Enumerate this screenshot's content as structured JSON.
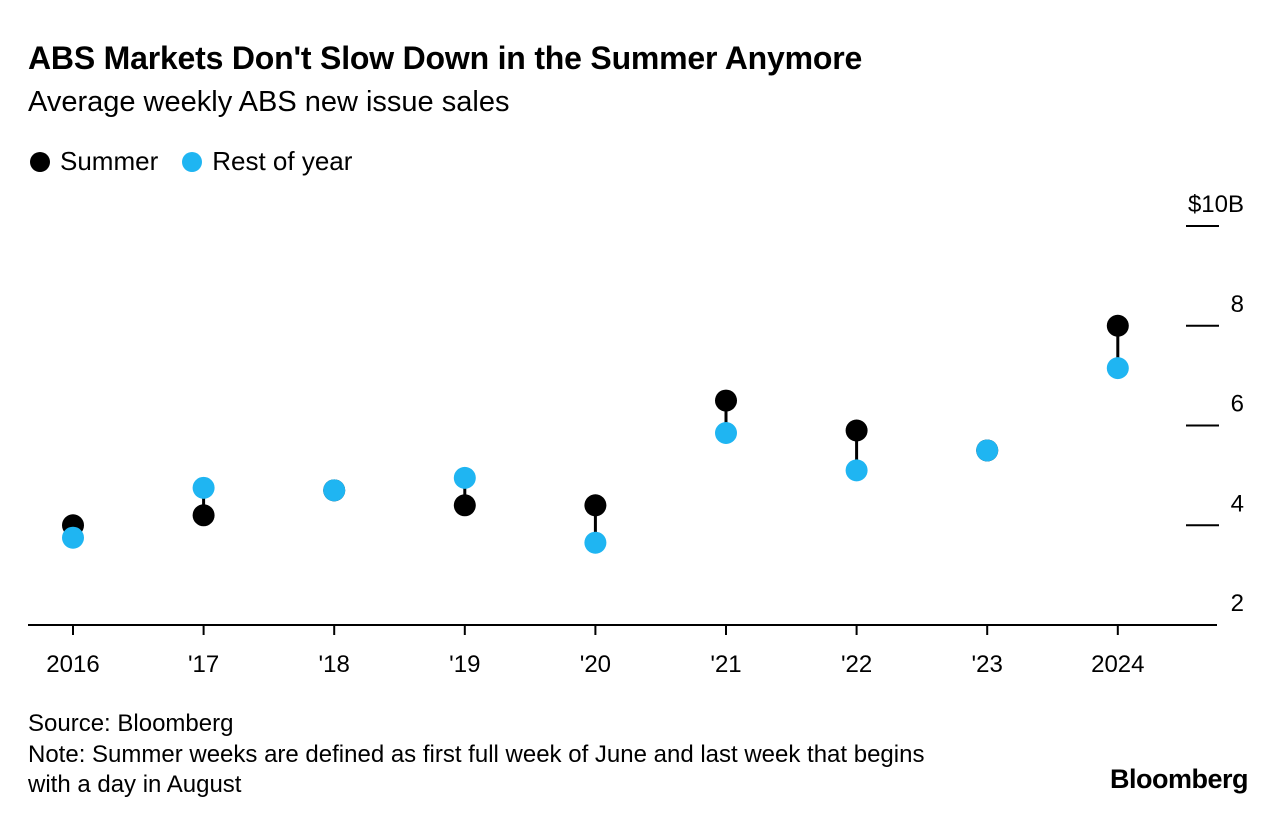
{
  "colors": {
    "summer": "#000000",
    "rest": "#1fb5f2",
    "axis": "#000000"
  },
  "legend": {
    "summer_label": "Summer",
    "rest_label": "Rest of year"
  },
  "footer": {
    "source": "Source: Bloomberg",
    "note": "Note: Summer weeks are defined as first full week of June and last week that begins with a day in August"
  },
  "logo_text": "Bloomberg",
  "chart_data": {
    "type": "dot-plot",
    "title": "ABS Markets Don't Slow Down in the Summer Anymore",
    "subtitle": "Average weekly ABS new issue sales",
    "categories": [
      "2016",
      "'17",
      "'18",
      "'19",
      "'20",
      "'21",
      "'22",
      "'23",
      "2024"
    ],
    "series": [
      {
        "name": "Summer",
        "values": [
          4.0,
          4.2,
          4.7,
          4.4,
          4.4,
          6.5,
          5.9,
          5.5,
          8.0
        ]
      },
      {
        "name": "Rest of year",
        "values": [
          3.75,
          4.75,
          4.7,
          4.95,
          3.65,
          5.85,
          5.1,
          5.5,
          7.15
        ]
      }
    ],
    "ylim": [
      2,
      10
    ],
    "yticks": [
      2,
      4,
      6,
      8,
      10
    ],
    "ytick_labels": [
      "2",
      "4",
      "6",
      "8",
      "$10B"
    ],
    "axis_position": "right",
    "xlabel": "",
    "ylabel": ""
  }
}
